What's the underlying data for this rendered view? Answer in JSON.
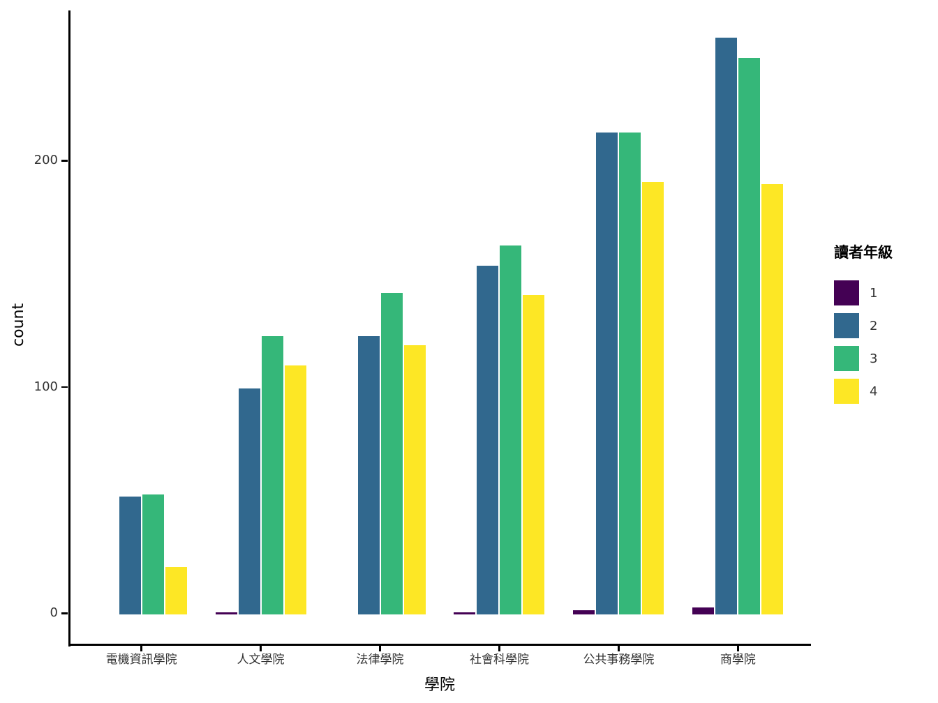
{
  "chart_data": {
    "type": "bar",
    "title": "",
    "xlabel": "學院",
    "ylabel": "count",
    "categories": [
      "電機資訊學院",
      "人文學院",
      "法律學院",
      "社會科學院",
      "公共事務學院",
      "商學院"
    ],
    "series": [
      {
        "name": "1",
        "color": "#440154",
        "values": [
          0,
          1,
          0,
          1,
          2,
          3
        ]
      },
      {
        "name": "2",
        "color": "#31688E",
        "values": [
          52,
          100,
          123,
          154,
          213,
          255
        ]
      },
      {
        "name": "3",
        "color": "#35B779",
        "values": [
          53,
          123,
          142,
          163,
          213,
          246
        ]
      },
      {
        "name": "4",
        "color": "#FDE725",
        "values": [
          21,
          110,
          119,
          141,
          191,
          190
        ]
      }
    ],
    "yticks": [
      0,
      100,
      200
    ],
    "ylim": [
      0,
      267
    ],
    "grid": false,
    "legend_title": "讀者年級",
    "legend_position": "right",
    "legend_entries": [
      "1",
      "2",
      "3",
      "4"
    ]
  }
}
